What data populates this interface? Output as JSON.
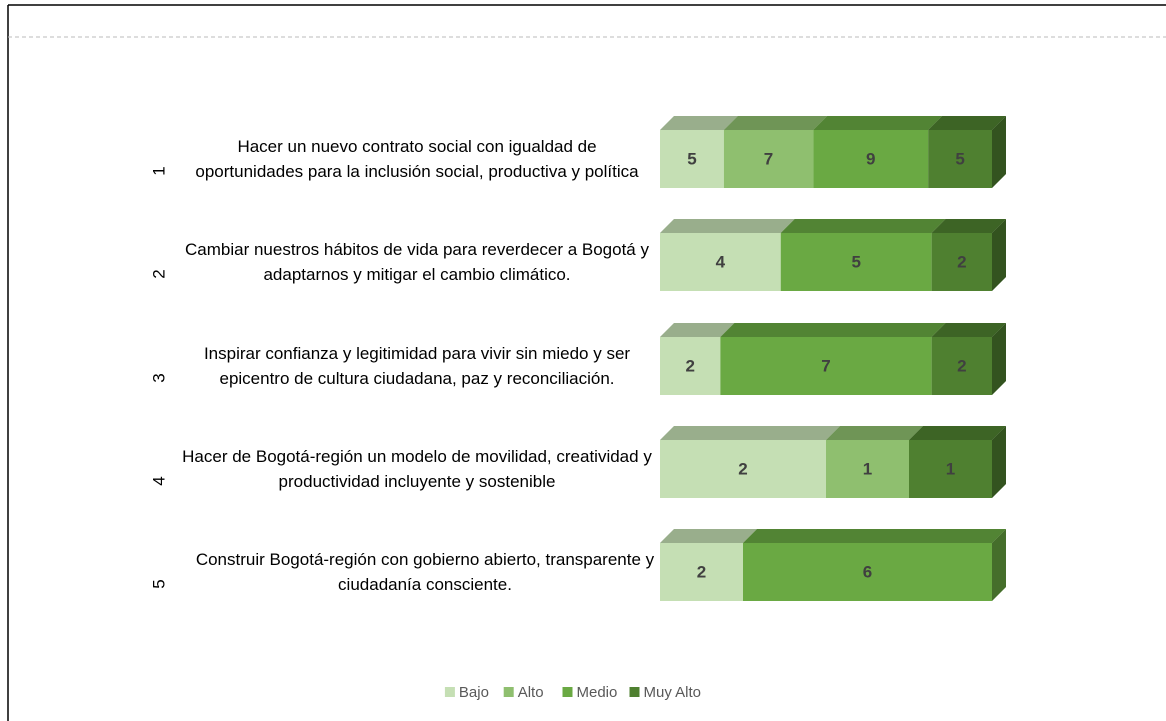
{
  "chart_data": {
    "type": "stacked-bar-3d",
    "categories": [
      "1",
      "2",
      "3",
      "4",
      "5"
    ],
    "category_labels": [
      "Hacer un nuevo contrato social con igualdad de oportunidades para la inclusión social, productiva y política",
      "Cambiar nuestros hábitos de vida para reverdecer a Bogotá y adaptarnos y mitigar el cambio climático.",
      "Inspirar confianza y legitimidad para vivir sin miedo y ser epicentro de cultura ciudadana, paz y reconciliación.",
      "Hacer de Bogotá-región un modelo de movilidad, creatividad y productividad incluyente y sostenible",
      "Construir Bogotá-región con gobierno abierto, transparente y ciudadanía consciente."
    ],
    "series": [
      {
        "name": "Bajo",
        "color": "#c5dfb4",
        "values": [
          5,
          4,
          2,
          2,
          2
        ]
      },
      {
        "name": "Alto",
        "color": "#8fbf6f",
        "values": [
          7,
          null,
          null,
          1,
          null
        ]
      },
      {
        "name": "Medio",
        "color": "#6aa943",
        "values": [
          9,
          5,
          7,
          null,
          6
        ]
      },
      {
        "name": "Muy Alto",
        "color": "#4f8030",
        "values": [
          5,
          2,
          2,
          1,
          null
        ]
      }
    ],
    "legend": "bottom"
  }
}
